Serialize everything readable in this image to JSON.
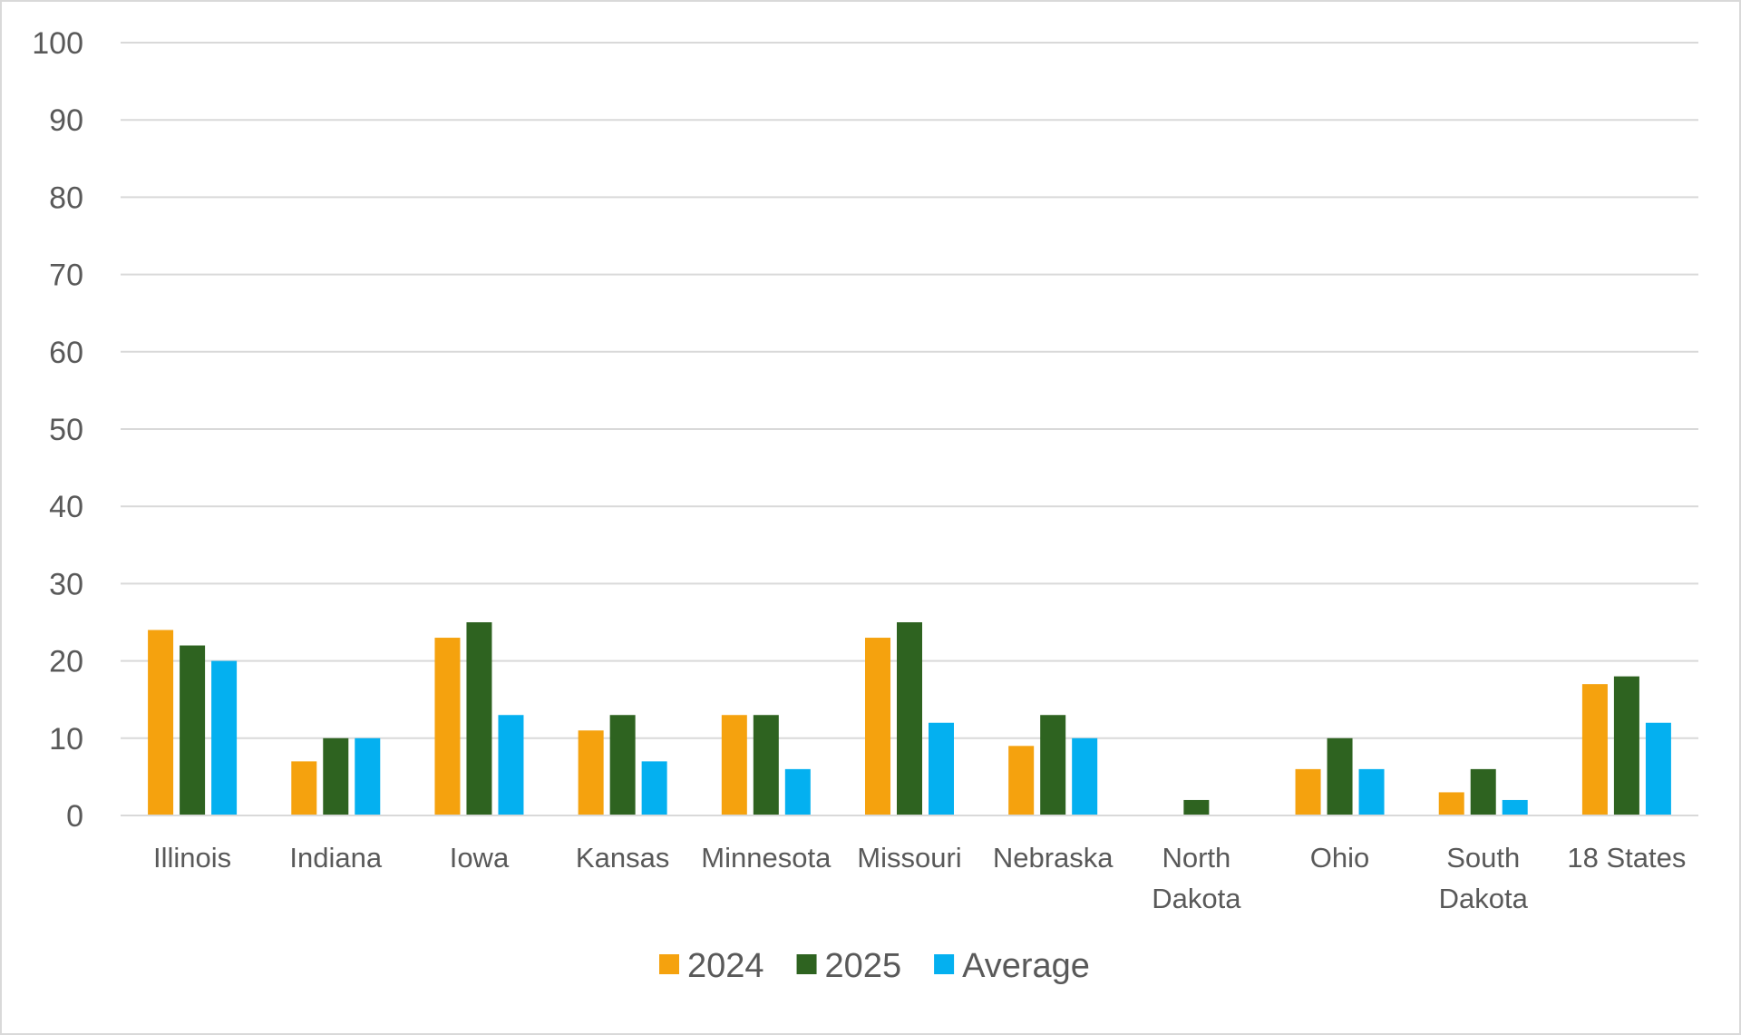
{
  "chart_data": {
    "type": "bar",
    "categories": [
      "Illinois",
      "Indiana",
      "Iowa",
      "Kansas",
      "Minnesota",
      "Missouri",
      "Nebraska",
      "North Dakota",
      "Ohio",
      "South Dakota",
      "18 States"
    ],
    "category_lines": [
      [
        "Illinois"
      ],
      [
        "Indiana"
      ],
      [
        "Iowa"
      ],
      [
        "Kansas"
      ],
      [
        "Minnesota"
      ],
      [
        "Missouri"
      ],
      [
        "Nebraska"
      ],
      [
        "North",
        "Dakota"
      ],
      [
        "Ohio"
      ],
      [
        "South",
        "Dakota"
      ],
      [
        "18 States"
      ]
    ],
    "series": [
      {
        "name": "2024",
        "color": "#F5A20E",
        "values": [
          24,
          7,
          23,
          11,
          13,
          23,
          9,
          0,
          6,
          3,
          17
        ]
      },
      {
        "name": "2025",
        "color": "#2E6320",
        "values": [
          22,
          10,
          25,
          13,
          13,
          25,
          13,
          2,
          10,
          6,
          18
        ]
      },
      {
        "name": "Average",
        "color": "#04B0F0",
        "values": [
          20,
          10,
          13,
          7,
          6,
          12,
          10,
          0,
          6,
          2,
          12
        ]
      }
    ],
    "ylim": [
      0,
      100
    ],
    "yticks": [
      "0",
      "10",
      "20",
      "30",
      "40",
      "50",
      "60",
      "70",
      "80",
      "90",
      "100"
    ],
    "title": "",
    "xlabel": "",
    "ylabel": "",
    "grid": true,
    "legend_position": "bottom-center",
    "gridline_color": "#d9d9d9",
    "text_color": "#595959"
  }
}
